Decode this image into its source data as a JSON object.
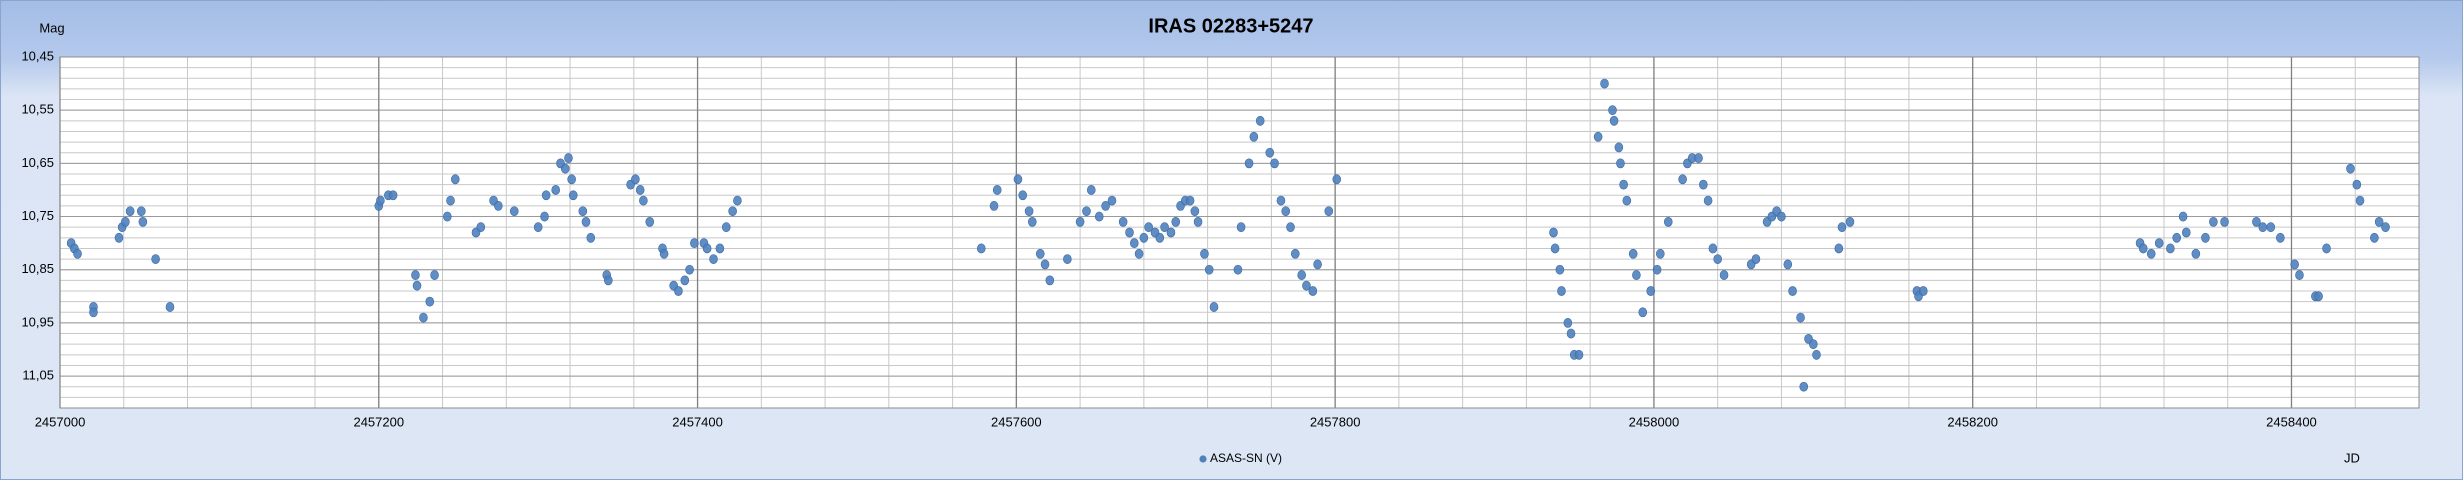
{
  "chart_data": {
    "type": "scatter",
    "title": "IRAS 02283+5247",
    "ylabel": "Mag",
    "xlabel": "JD",
    "legend": "bottom",
    "grid": true,
    "yreverse": true,
    "xminor": 40,
    "yminor": 0.02,
    "xlim": [
      2457000,
      2458480
    ],
    "ylim": [
      10.45,
      11.11
    ],
    "xticks": [
      2457000,
      2457200,
      2457400,
      2457600,
      2457800,
      2458000,
      2458200,
      2458400
    ],
    "yticks": [
      {
        "value": 10.45,
        "label": "10,45"
      },
      {
        "value": 10.55,
        "label": "10,55"
      },
      {
        "value": 10.65,
        "label": "10,65"
      },
      {
        "value": 10.75,
        "label": "10,75"
      },
      {
        "value": 10.85,
        "label": "10,85"
      },
      {
        "value": 10.95,
        "label": "10,95"
      },
      {
        "value": 11.05,
        "label": "11,05"
      }
    ],
    "series": [
      {
        "name": "ASAS-SN (V)",
        "color": "#4f81bd",
        "x": [
          2457007,
          2457009,
          2457011,
          2457021,
          2457021,
          2457037,
          2457039,
          2457041,
          2457044,
          2457051,
          2457052,
          2457060,
          2457069,
          2457200,
          2457201,
          2457206,
          2457209,
          2457223,
          2457224,
          2457228,
          2457232,
          2457235,
          2457243,
          2457245,
          2457248,
          2457261,
          2457264,
          2457272,
          2457275,
          2457285,
          2457300,
          2457304,
          2457305,
          2457311,
          2457314,
          2457317,
          2457319,
          2457321,
          2457322,
          2457328,
          2457330,
          2457333,
          2457343,
          2457344,
          2457358,
          2457361,
          2457364,
          2457366,
          2457370,
          2457378,
          2457379,
          2457385,
          2457388,
          2457392,
          2457395,
          2457398,
          2457404,
          2457406,
          2457410,
          2457414,
          2457418,
          2457422,
          2457425,
          2457578,
          2457586,
          2457588,
          2457601,
          2457604,
          2457608,
          2457610,
          2457615,
          2457618,
          2457621,
          2457632,
          2457640,
          2457644,
          2457647,
          2457652,
          2457656,
          2457660,
          2457667,
          2457671,
          2457674,
          2457677,
          2457680,
          2457683,
          2457687,
          2457690,
          2457693,
          2457697,
          2457700,
          2457703,
          2457706,
          2457709,
          2457712,
          2457714,
          2457718,
          2457721,
          2457724,
          2457739,
          2457741,
          2457746,
          2457749,
          2457753,
          2457759,
          2457762,
          2457766,
          2457769,
          2457772,
          2457775,
          2457779,
          2457782,
          2457786,
          2457789,
          2457796,
          2457801,
          2457937,
          2457938,
          2457941,
          2457942,
          2457946,
          2457948,
          2457950,
          2457953,
          2457965,
          2457969,
          2457974,
          2457975,
          2457978,
          2457979,
          2457981,
          2457983,
          2457987,
          2457989,
          2457993,
          2457998,
          2458002,
          2458004,
          2458009,
          2458018,
          2458021,
          2458024,
          2458028,
          2458031,
          2458034,
          2458037,
          2458040,
          2458044,
          2458061,
          2458064,
          2458071,
          2458074,
          2458077,
          2458080,
          2458084,
          2458087,
          2458092,
          2458094,
          2458097,
          2458100,
          2458102,
          2458116,
          2458118,
          2458123,
          2458165,
          2458166,
          2458169,
          2458305,
          2458307,
          2458312,
          2458317,
          2458324,
          2458328,
          2458332,
          2458334,
          2458340,
          2458346,
          2458351,
          2458358,
          2458378,
          2458382,
          2458387,
          2458393,
          2458402,
          2458405,
          2458415,
          2458417,
          2458422,
          2458437,
          2458441,
          2458443,
          2458452,
          2458455,
          2458459
        ],
        "values": [
          10.8,
          10.81,
          10.82,
          10.92,
          10.93,
          10.79,
          10.77,
          10.76,
          10.74,
          10.74,
          10.76,
          10.83,
          10.92,
          10.73,
          10.72,
          10.71,
          10.71,
          10.86,
          10.88,
          10.94,
          10.91,
          10.86,
          10.75,
          10.72,
          10.68,
          10.78,
          10.77,
          10.72,
          10.73,
          10.74,
          10.77,
          10.75,
          10.71,
          10.7,
          10.65,
          10.66,
          10.64,
          10.68,
          10.71,
          10.74,
          10.76,
          10.79,
          10.86,
          10.87,
          10.69,
          10.68,
          10.7,
          10.72,
          10.76,
          10.81,
          10.82,
          10.88,
          10.89,
          10.87,
          10.85,
          10.8,
          10.8,
          10.81,
          10.83,
          10.81,
          10.77,
          10.74,
          10.72,
          10.81,
          10.73,
          10.7,
          10.68,
          10.71,
          10.74,
          10.76,
          10.82,
          10.84,
          10.87,
          10.83,
          10.76,
          10.74,
          10.7,
          10.75,
          10.73,
          10.72,
          10.76,
          10.78,
          10.8,
          10.82,
          10.79,
          10.77,
          10.78,
          10.79,
          10.77,
          10.78,
          10.76,
          10.73,
          10.72,
          10.72,
          10.74,
          10.76,
          10.82,
          10.85,
          10.92,
          10.85,
          10.77,
          10.65,
          10.6,
          10.57,
          10.63,
          10.65,
          10.72,
          10.74,
          10.77,
          10.82,
          10.86,
          10.88,
          10.89,
          10.84,
          10.74,
          10.68,
          10.78,
          10.81,
          10.85,
          10.89,
          10.95,
          10.97,
          11.01,
          11.01,
          10.6,
          10.5,
          10.55,
          10.57,
          10.62,
          10.65,
          10.69,
          10.72,
          10.82,
          10.86,
          10.93,
          10.89,
          10.85,
          10.82,
          10.76,
          10.68,
          10.65,
          10.64,
          10.64,
          10.69,
          10.72,
          10.81,
          10.83,
          10.86,
          10.84,
          10.83,
          10.76,
          10.75,
          10.74,
          10.75,
          10.84,
          10.89,
          10.94,
          11.07,
          10.98,
          10.99,
          11.01,
          10.81,
          10.77,
          10.76,
          10.89,
          10.9,
          10.89,
          10.8,
          10.81,
          10.82,
          10.8,
          10.81,
          10.79,
          10.75,
          10.78,
          10.82,
          10.79,
          10.76,
          10.76,
          10.76,
          10.77,
          10.77,
          10.79,
          10.84,
          10.86,
          10.9,
          10.9,
          10.81,
          10.66,
          10.69,
          10.72,
          10.79,
          10.76,
          10.77
        ]
      }
    ]
  }
}
